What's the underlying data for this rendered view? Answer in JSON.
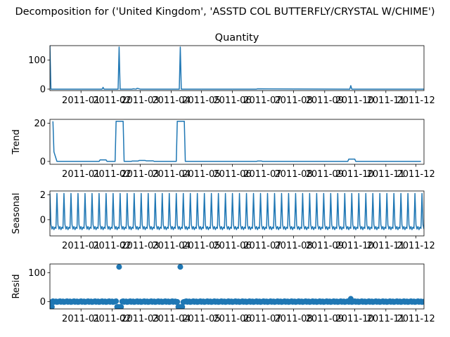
{
  "figure": {
    "suptitle": "Decomposition for ('United Kingdom', 'ASSTD COL BUTTERFLY/CRYSTAL W/CHIME')"
  },
  "colors": {
    "line": "#1f77b4",
    "axis": "#000000"
  },
  "x_tick_labels": [
    "2011-01",
    "2011-02",
    "2011-03",
    "2011-04",
    "2011-05",
    "2011-06",
    "2011-07",
    "2011-08",
    "2011-09",
    "2011-10",
    "2011-11",
    "2011-12"
  ],
  "chart_data": [
    {
      "type": "line",
      "title": "Quantity",
      "ylabel": "",
      "ylim": [
        -5,
        150
      ],
      "yticks": [
        "0",
        "100"
      ],
      "series": [
        {
          "x": [
            "2010-12-01",
            "2010-12-02",
            "2010-12-03",
            "2011-01-07",
            "2011-01-08",
            "2011-01-22",
            "2011-01-23",
            "2011-01-24",
            "2011-01-30",
            "2011-02-07",
            "2011-02-08",
            "2011-02-09",
            "2011-02-10",
            "2011-02-21",
            "2011-02-22",
            "2011-02-25",
            "2011-02-26",
            "2011-03-01",
            "2011-04-08",
            "2011-04-09",
            "2011-04-10",
            "2011-04-11",
            "2011-04-12",
            "2011-06-25",
            "2011-06-26",
            "2011-09-26",
            "2011-09-27",
            "2011-09-28",
            "2011-10-30",
            "2011-12-09"
          ],
          "values": [
            150,
            0,
            0,
            0,
            0,
            0,
            6,
            0,
            0,
            0,
            145,
            0,
            0,
            0,
            1,
            0,
            3,
            0,
            0,
            0,
            145,
            0,
            0,
            0,
            1,
            0,
            12,
            0,
            0,
            0
          ]
        }
      ]
    },
    {
      "type": "line",
      "title": "",
      "ylabel": "Trend",
      "ylim": [
        -1.5,
        22
      ],
      "yticks": [
        "0",
        "20"
      ],
      "series": [
        {
          "x": [
            "2010-12-04",
            "2010-12-05",
            "2010-12-08",
            "2011-01-19",
            "2011-01-20",
            "2011-01-26",
            "2011-01-27",
            "2011-02-04",
            "2011-02-05",
            "2011-02-12",
            "2011-02-13",
            "2011-02-20",
            "2011-02-21",
            "2011-02-27",
            "2011-02-28",
            "2011-03-06",
            "2011-03-07",
            "2011-03-14",
            "2011-03-15",
            "2011-04-06",
            "2011-04-07",
            "2011-04-14",
            "2011-04-15",
            "2011-06-25",
            "2011-06-26",
            "2011-06-30",
            "2011-07-01",
            "2011-09-24",
            "2011-09-25",
            "2011-10-01",
            "2011-10-02",
            "2011-12-06"
          ],
          "values": [
            21,
            5,
            0,
            0,
            0.8,
            0.8,
            0,
            0,
            21,
            21,
            0,
            0,
            0.2,
            0.2,
            0.5,
            0.5,
            0.3,
            0.3,
            0,
            0,
            21,
            21,
            0,
            0,
            0.2,
            0.2,
            0,
            0,
            1.2,
            1.2,
            0,
            0
          ]
        }
      ]
    },
    {
      "type": "line",
      "title": "",
      "ylabel": "Seasonal",
      "ylim": [
        -1.3,
        2.3
      ],
      "yticks": [
        "0",
        "2"
      ],
      "period_days": 7,
      "pattern": [
        2.1,
        -0.4,
        -0.75,
        -0.55,
        -0.8,
        -0.6,
        -0.7
      ],
      "x_start": "2010-12-01",
      "x_end": "2011-12-09"
    },
    {
      "type": "scatter",
      "title": "",
      "ylabel": "Resid",
      "ylim": [
        -25,
        130
      ],
      "yticks": [
        "0",
        "100"
      ],
      "series": [
        {
          "x": [
            "2011-02-08",
            "2011-04-10",
            "2011-09-27",
            "2011-02-06",
            "2011-02-07",
            "2011-02-09",
            "2011-02-10",
            "2011-04-08",
            "2011-04-09",
            "2011-04-11",
            "2011-04-12",
            "2010-12-02",
            "2010-12-03"
          ],
          "values": [
            120,
            120,
            10,
            -18,
            -18,
            -18,
            -18,
            -18,
            -18,
            -18,
            -18,
            -18,
            -18
          ]
        }
      ],
      "baseline_noise": 3
    }
  ]
}
